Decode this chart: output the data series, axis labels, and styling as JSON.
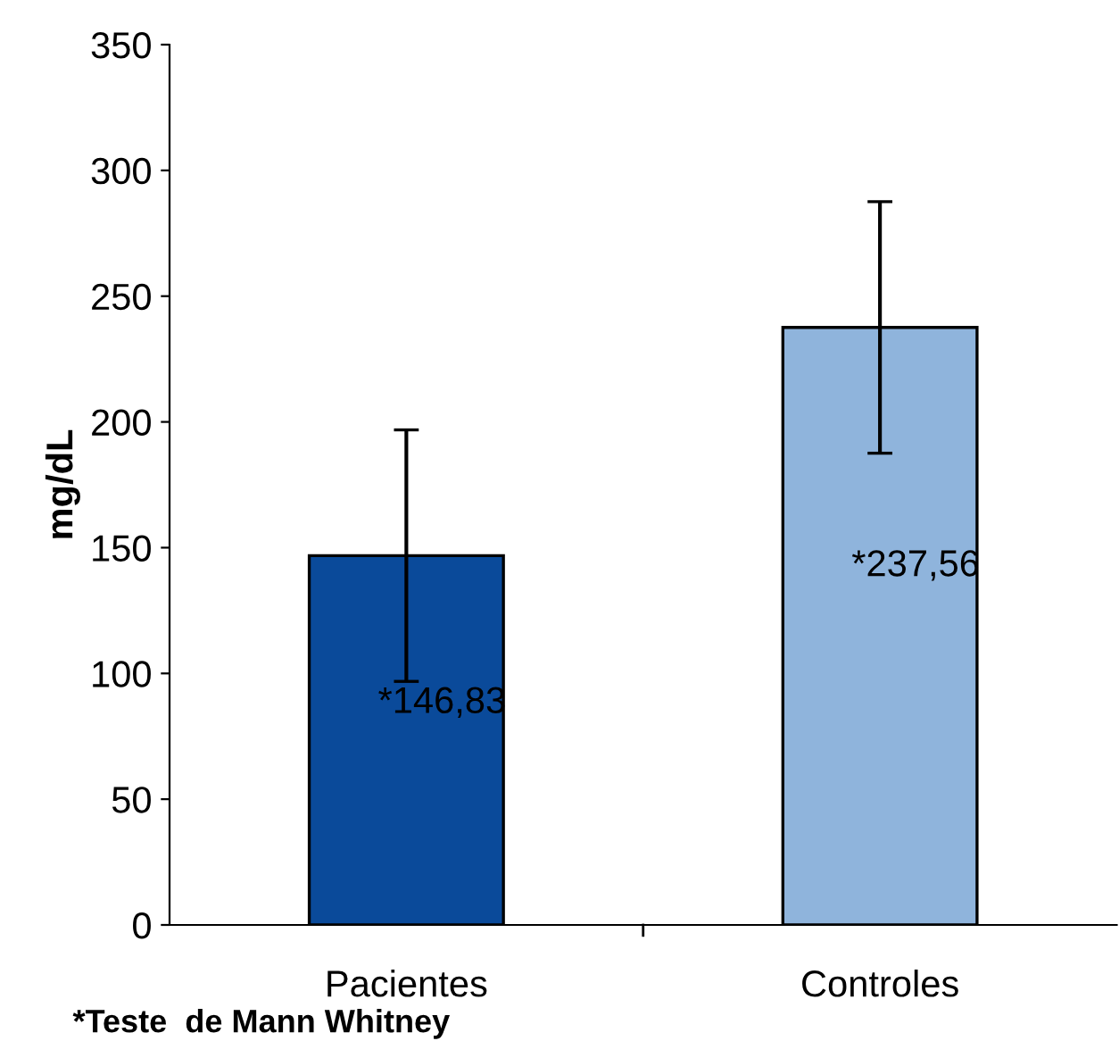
{
  "chart_data": {
    "type": "bar",
    "ylabel": "mg/dL",
    "categories": [
      "Pacientes",
      "Controles"
    ],
    "values": [
      146.83,
      237.56
    ],
    "colors": [
      "#0a4a9a",
      "#8fb4dc"
    ],
    "errors": [
      50,
      50
    ],
    "value_labels": [
      "*146,83",
      "*237,56"
    ],
    "ylim": [
      0,
      350
    ],
    "yticks": [
      0,
      50,
      100,
      150,
      200,
      250,
      300,
      350
    ],
    "grid": false,
    "legend": false,
    "annotations": [
      "*Teste  de Mann Whitney"
    ]
  }
}
